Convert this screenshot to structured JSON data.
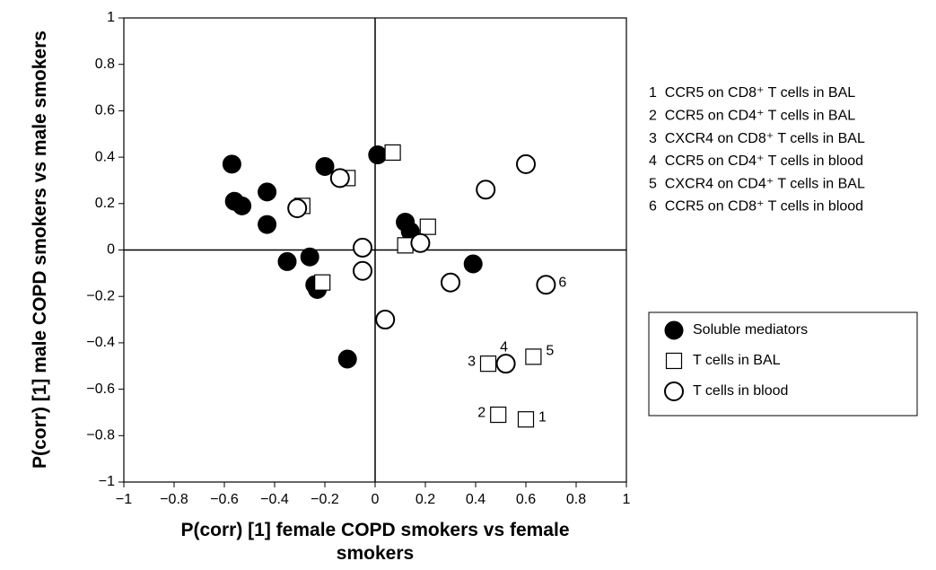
{
  "chart_data": {
    "type": "scatter",
    "x_label": "P(corr) [1] female COPD smokers vs female smokers",
    "y_label": "P(corr) [1] male COPD smokers vs male smokers",
    "xlim": [
      -1,
      1
    ],
    "ylim": [
      -1,
      1
    ],
    "xticks": [
      {
        "value": -1,
        "label": "−1"
      },
      {
        "value": -0.8,
        "label": "−0.8"
      },
      {
        "value": -0.6,
        "label": "−0.6"
      },
      {
        "value": -0.4,
        "label": "−0.4"
      },
      {
        "value": -0.2,
        "label": "−0.2"
      },
      0,
      0.2,
      0.4,
      0.6,
      0.8,
      1
    ],
    "yticks": [
      {
        "value": -1,
        "label": "−1"
      },
      {
        "value": -0.8,
        "label": "−0.8"
      },
      {
        "value": -0.6,
        "label": "−0.6"
      },
      {
        "value": -0.4,
        "label": "−0.4"
      },
      {
        "value": -0.2,
        "label": "−0.2"
      },
      0,
      0.2,
      0.4,
      0.6,
      0.8,
      1
    ],
    "grid": false,
    "series": [
      {
        "name": "Soluble mediators",
        "color": "#000000",
        "marker": "circle-filled",
        "x": [
          -0.57,
          -0.56,
          -0.53,
          -0.43,
          -0.43,
          -0.2,
          0.01,
          -0.35,
          -0.26,
          -0.24,
          -0.23,
          -0.11,
          0.12,
          0.14,
          0.39
        ],
        "values": [
          0.37,
          0.21,
          0.19,
          0.25,
          0.11,
          0.36,
          0.41,
          -0.05,
          -0.03,
          -0.15,
          -0.17,
          -0.47,
          0.12,
          0.08,
          -0.06
        ]
      },
      {
        "name": "T cells in BAL",
        "color": "#000000",
        "marker": "square-open",
        "x": [
          0.07,
          -0.11,
          -0.29,
          -0.21,
          0.12,
          0.21,
          0.45,
          0.63,
          0.49,
          0.6
        ],
        "values": [
          0.42,
          0.31,
          0.19,
          -0.14,
          0.02,
          0.1,
          -0.49,
          -0.46,
          -0.71,
          -0.73
        ],
        "point_labels": [
          null,
          null,
          null,
          null,
          null,
          null,
          "3",
          "5",
          "2",
          "1"
        ]
      },
      {
        "name": "T cells in blood",
        "color": "#000000",
        "marker": "circle-open",
        "x": [
          -0.14,
          -0.31,
          -0.05,
          -0.05,
          0.04,
          0.18,
          0.3,
          0.44,
          0.6,
          0.52,
          0.68
        ],
        "values": [
          0.31,
          0.18,
          0.01,
          -0.09,
          -0.3,
          0.03,
          -0.14,
          0.26,
          0.37,
          -0.49,
          -0.15
        ],
        "point_labels": [
          null,
          null,
          null,
          null,
          null,
          null,
          null,
          null,
          null,
          "4",
          "6"
        ]
      }
    ],
    "key": [
      "1  CCR5 on CD8⁺ T cells in BAL",
      "2  CCR5 on CD4⁺ T cells in BAL",
      "3  CXCR4 on CD8⁺ T cells in BAL",
      "4  CCR5 on CD4⁺ T cells in blood",
      "5  CXCR4 on CD4⁺ T cells in BAL",
      "6  CCR5 on CD8⁺ T cells in blood"
    ],
    "legend": "right"
  }
}
